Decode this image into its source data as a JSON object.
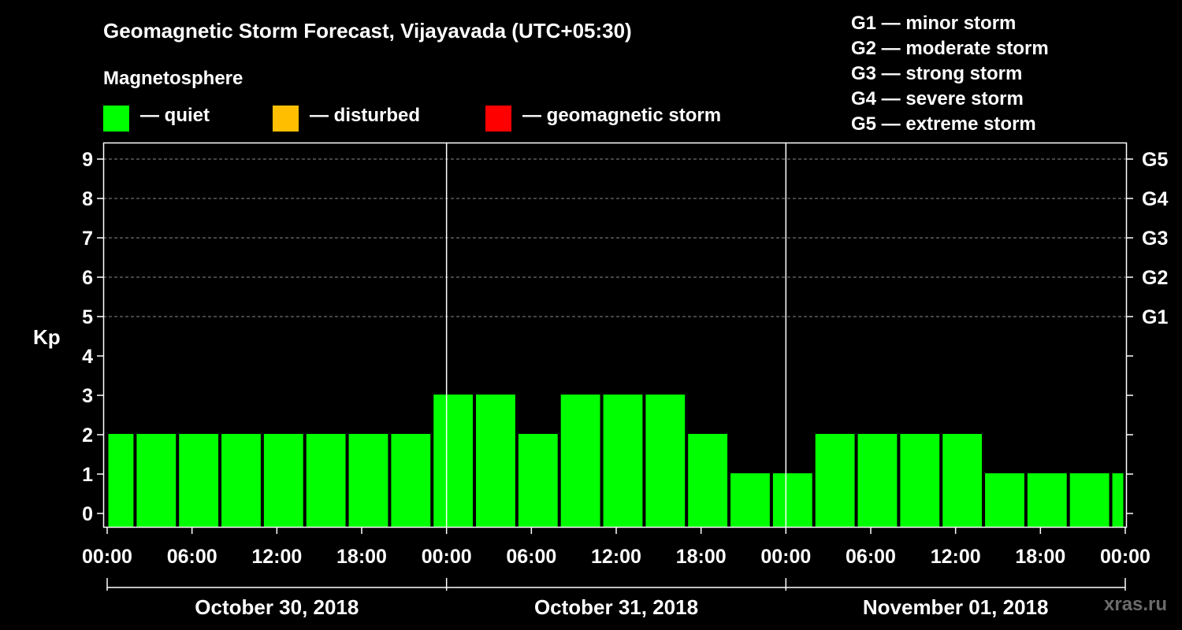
{
  "chart_data": {
    "type": "bar",
    "title": "Geomagnetic Storm Forecast, Vijayavada (UTC+05:30)",
    "subtitle": "Magnetosphere",
    "ylabel": "Kp",
    "ylim": [
      0,
      9
    ],
    "yticks": [
      "0",
      "1",
      "2",
      "3",
      "4",
      "5",
      "6",
      "7",
      "8",
      "9"
    ],
    "right_axis_labels": [
      {
        "kp": 5,
        "label": "G1"
      },
      {
        "kp": 6,
        "label": "G2"
      },
      {
        "kp": 7,
        "label": "G3"
      },
      {
        "kp": 8,
        "label": "G4"
      },
      {
        "kp": 9,
        "label": "G5"
      }
    ],
    "legend": [
      {
        "label": "— quiet",
        "color": "#00ff00"
      },
      {
        "label": "— disturbed",
        "color": "#ffbf00"
      },
      {
        "label": "— geomagnetic storm",
        "color": "#ff0000"
      }
    ],
    "storm_scale": [
      "G1 — minor storm",
      "G2 — moderate storm",
      "G3 — strong storm",
      "G4 — severe storm",
      "G5 — extreme storm"
    ],
    "x_hours_range": [
      0,
      72
    ],
    "xticks": [
      "00:00",
      "06:00",
      "12:00",
      "18:00",
      "00:00",
      "06:00",
      "12:00",
      "18:00",
      "00:00",
      "06:00",
      "12:00",
      "18:00",
      "00:00"
    ],
    "days": [
      "October 30, 2018",
      "October 31, 2018",
      "November 01, 2018"
    ],
    "bars": [
      {
        "start_hour": 0,
        "end_hour": 2,
        "kp": 2
      },
      {
        "start_hour": 2,
        "end_hour": 5,
        "kp": 2
      },
      {
        "start_hour": 5,
        "end_hour": 8,
        "kp": 2
      },
      {
        "start_hour": 8,
        "end_hour": 11,
        "kp": 2
      },
      {
        "start_hour": 11,
        "end_hour": 14,
        "kp": 2
      },
      {
        "start_hour": 14,
        "end_hour": 17,
        "kp": 2
      },
      {
        "start_hour": 17,
        "end_hour": 20,
        "kp": 2
      },
      {
        "start_hour": 20,
        "end_hour": 23,
        "kp": 2
      },
      {
        "start_hour": 23,
        "end_hour": 26,
        "kp": 3
      },
      {
        "start_hour": 26,
        "end_hour": 29,
        "kp": 3
      },
      {
        "start_hour": 29,
        "end_hour": 32,
        "kp": 2
      },
      {
        "start_hour": 32,
        "end_hour": 35,
        "kp": 3
      },
      {
        "start_hour": 35,
        "end_hour": 38,
        "kp": 3
      },
      {
        "start_hour": 38,
        "end_hour": 41,
        "kp": 3
      },
      {
        "start_hour": 41,
        "end_hour": 44,
        "kp": 2
      },
      {
        "start_hour": 44,
        "end_hour": 47,
        "kp": 1
      },
      {
        "start_hour": 47,
        "end_hour": 50,
        "kp": 1
      },
      {
        "start_hour": 50,
        "end_hour": 53,
        "kp": 2
      },
      {
        "start_hour": 53,
        "end_hour": 56,
        "kp": 2
      },
      {
        "start_hour": 56,
        "end_hour": 59,
        "kp": 2
      },
      {
        "start_hour": 59,
        "end_hour": 62,
        "kp": 2
      },
      {
        "start_hour": 62,
        "end_hour": 65,
        "kp": 1
      },
      {
        "start_hour": 65,
        "end_hour": 68,
        "kp": 1
      },
      {
        "start_hour": 68,
        "end_hour": 71,
        "kp": 1
      },
      {
        "start_hour": 71,
        "end_hour": 72,
        "kp": 1
      }
    ],
    "quiet_color": "#00ff00"
  },
  "watermark": "xras.ru"
}
